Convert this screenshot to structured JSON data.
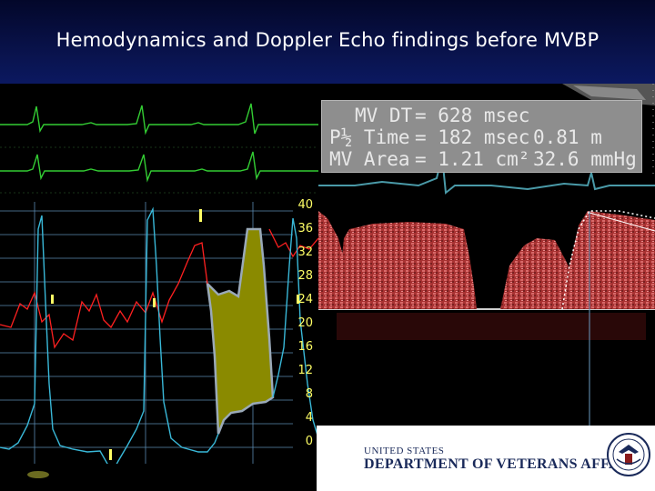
{
  "slide": {
    "title": "Hemodynamics and Doppler Echo findings before MVBP"
  },
  "pressure_axis": {
    "ticks": [
      "40",
      "36",
      "32",
      "28",
      "24",
      "20",
      "16",
      "12",
      "8",
      "4",
      "0"
    ]
  },
  "measurements": {
    "rows": [
      {
        "label": "MV DT",
        "value": "= 628 msec"
      },
      {
        "label": "P½ Time",
        "value": "= 182 msec"
      },
      {
        "label": "MV Area",
        "value": "= 1.21 cm²"
      }
    ],
    "extra": [
      "0.81 m",
      "32.6 mmHg"
    ]
  },
  "banner": {
    "line1": "UNITED STATES",
    "line2": "DEPARTMENT OF VETERANS AFFAIRS"
  },
  "colors": {
    "ecg": "#33cc33",
    "pressure_pa": "#ff2020",
    "pressure_la": "#39b8d8",
    "gradient_fill": "#8a8a00",
    "doppler": "#c84040",
    "background": "#000000",
    "title_bg": "#0a1450"
  }
}
